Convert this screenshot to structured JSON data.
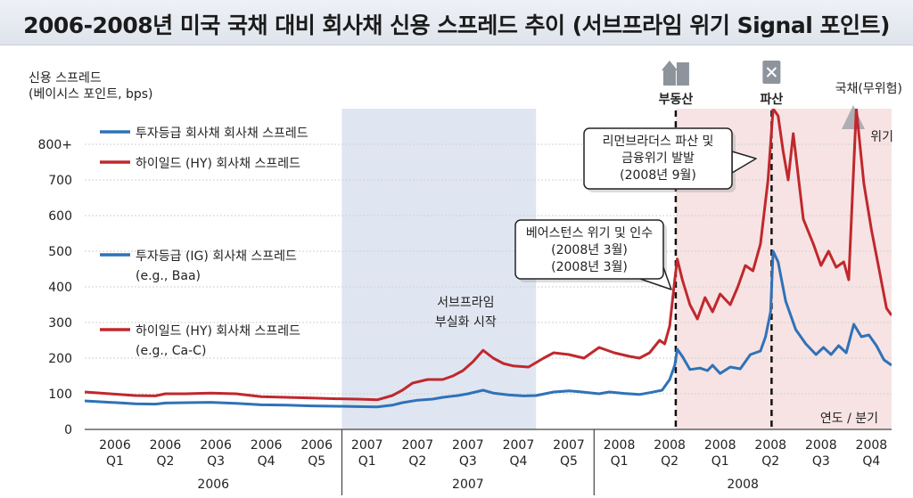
{
  "header": {
    "title": "2006-2008년 미국 국채 대비 회사채 신용 스프레드 추이 (서브프라임 위기 Signal 포인트)"
  },
  "chart_data": {
    "type": "line",
    "title": "2006-2008년 미국 국채 대비 회사채 신용 스프레드 추이 (서브프라임 위기 Signal 포인트)",
    "ylabel": [
      "신용 스프레드",
      "(베이시스 포인트, bps)"
    ],
    "xlabel": "연도 / 분기",
    "ylim": [
      0,
      900
    ],
    "yticks": [
      {
        "v": 0,
        "label": "0"
      },
      {
        "v": 100,
        "label": "100"
      },
      {
        "v": 200,
        "label": "200"
      },
      {
        "v": 300,
        "label": "300"
      },
      {
        "v": 400,
        "label": "400"
      },
      {
        "v": 500,
        "label": "500"
      },
      {
        "v": 600,
        "label": "600"
      },
      {
        "v": 700,
        "label": "700"
      },
      {
        "v": 800,
        "label": "800+"
      }
    ],
    "xlim": [
      0,
      16
    ],
    "xticks": [
      {
        "x": 0.6,
        "year": "2006",
        "q": "Q1"
      },
      {
        "x": 1.6,
        "year": "2006",
        "q": "Q2"
      },
      {
        "x": 2.6,
        "year": "2006",
        "q": "Q3"
      },
      {
        "x": 3.6,
        "year": "2006",
        "q": "Q4"
      },
      {
        "x": 4.6,
        "year": "2006",
        "q": "Q5"
      },
      {
        "x": 5.6,
        "year": "2007",
        "q": "Q1"
      },
      {
        "x": 6.6,
        "year": "2007",
        "q": "Q2"
      },
      {
        "x": 7.6,
        "year": "2007",
        "q": "Q3"
      },
      {
        "x": 8.6,
        "year": "2007",
        "q": "Q4"
      },
      {
        "x": 9.6,
        "year": "2007",
        "q": "Q5"
      },
      {
        "x": 10.6,
        "year": "2008",
        "q": "Q1"
      },
      {
        "x": 11.6,
        "year": "2008",
        "q": "Q2"
      },
      {
        "x": 12.6,
        "year": "2008",
        "q": "Q1"
      },
      {
        "x": 13.6,
        "year": "2008",
        "q": "Q2"
      },
      {
        "x": 14.6,
        "year": "2008",
        "q": "Q3"
      },
      {
        "x": 15.6,
        "year": "2008",
        "q": "Q4"
      }
    ],
    "year_groups": [
      {
        "label": "2006",
        "x0": 0,
        "x1": 5.1
      },
      {
        "label": "2007",
        "x0": 5.1,
        "x1": 10.1
      },
      {
        "label": "2008",
        "x0": 10.1,
        "x1": 16
      }
    ],
    "legend": [
      {
        "series": 0,
        "text": [
          "투자등급 회사채 회사채 스프레드"
        ]
      },
      {
        "series": 1,
        "text": [
          "하이일드 (HY) 회사채 스프레드"
        ]
      },
      {
        "series": 0,
        "text": [
          "투자등급 (IG) 회사채 스프레드",
          "(e.g., Baa)"
        ]
      },
      {
        "series": 1,
        "text": [
          "하이일드 (HY) 회사채 스프레드",
          "(e.g., Ca-C)"
        ]
      }
    ],
    "regions": [
      {
        "x0": 5.1,
        "x1": 8.95,
        "color": "#dfe6f1",
        "label": [
          "서브프라임",
          "부실화 시작"
        ]
      },
      {
        "x0": 11.72,
        "x1": 16,
        "color": "#f7e3e3",
        "label": []
      }
    ],
    "events": [
      {
        "x": 11.72,
        "label": "부동산",
        "icon": "building-icon"
      },
      {
        "x": 13.62,
        "label": "파산",
        "icon": "bankruptcy-document-icon"
      }
    ],
    "corner_labels": [
      {
        "text": "국채(무위험)",
        "color": "#222222"
      },
      {
        "text": "위기",
        "color": "#c0282d"
      }
    ],
    "callouts": [
      {
        "text": [
          "베어스턴스 위기 및 인수",
          "(2008년 3월)",
          "(2008년 3월)"
        ],
        "target": [
          11.7,
          480
        ]
      },
      {
        "text": [
          "리먼브라더스 파산 및",
          "금융위기 발발",
          "(2008년 9월)"
        ],
        "target": [
          13.55,
          800
        ]
      }
    ],
    "series": [
      {
        "name": "투자등급 (IG) 회사채 스프레드",
        "color": "#2f72b8",
        "points": [
          [
            0,
            80
          ],
          [
            0.5,
            76
          ],
          [
            1,
            72
          ],
          [
            1.4,
            71
          ],
          [
            1.6,
            74
          ],
          [
            2,
            75
          ],
          [
            2.5,
            76
          ],
          [
            3,
            73
          ],
          [
            3.5,
            69
          ],
          [
            4,
            68
          ],
          [
            4.5,
            66
          ],
          [
            5,
            65
          ],
          [
            5.4,
            64
          ],
          [
            5.8,
            63
          ],
          [
            6.1,
            68
          ],
          [
            6.3,
            75
          ],
          [
            6.6,
            82
          ],
          [
            6.9,
            85
          ],
          [
            7.1,
            90
          ],
          [
            7.4,
            95
          ],
          [
            7.6,
            100
          ],
          [
            7.9,
            110
          ],
          [
            8.1,
            102
          ],
          [
            8.4,
            97
          ],
          [
            8.7,
            94
          ],
          [
            8.95,
            95
          ],
          [
            9.3,
            105
          ],
          [
            9.6,
            108
          ],
          [
            9.8,
            106
          ],
          [
            10.2,
            100
          ],
          [
            10.4,
            105
          ],
          [
            10.7,
            101
          ],
          [
            11,
            98
          ],
          [
            11.2,
            103
          ],
          [
            11.45,
            110
          ],
          [
            11.6,
            140
          ],
          [
            11.7,
            180
          ],
          [
            11.75,
            225
          ],
          [
            11.85,
            205
          ],
          [
            12,
            168
          ],
          [
            12.2,
            172
          ],
          [
            12.35,
            165
          ],
          [
            12.45,
            180
          ],
          [
            12.6,
            157
          ],
          [
            12.8,
            175
          ],
          [
            13,
            170
          ],
          [
            13.2,
            210
          ],
          [
            13.4,
            220
          ],
          [
            13.5,
            260
          ],
          [
            13.6,
            330
          ],
          [
            13.65,
            500
          ],
          [
            13.75,
            470
          ],
          [
            13.9,
            360
          ],
          [
            14.1,
            280
          ],
          [
            14.3,
            240
          ],
          [
            14.5,
            210
          ],
          [
            14.65,
            230
          ],
          [
            14.8,
            210
          ],
          [
            14.95,
            235
          ],
          [
            15.1,
            215
          ],
          [
            15.25,
            295
          ],
          [
            15.4,
            260
          ],
          [
            15.55,
            265
          ],
          [
            15.7,
            235
          ],
          [
            15.85,
            195
          ],
          [
            16,
            180
          ]
        ]
      },
      {
        "name": "하이일드 (HY) 회사채 스프레드",
        "color": "#c0282d",
        "points": [
          [
            0,
            105
          ],
          [
            0.5,
            100
          ],
          [
            1,
            95
          ],
          [
            1.4,
            94
          ],
          [
            1.6,
            100
          ],
          [
            2,
            100
          ],
          [
            2.5,
            102
          ],
          [
            3,
            100
          ],
          [
            3.5,
            92
          ],
          [
            4,
            90
          ],
          [
            4.5,
            88
          ],
          [
            5,
            86
          ],
          [
            5.4,
            85
          ],
          [
            5.8,
            83
          ],
          [
            6.1,
            95
          ],
          [
            6.3,
            110
          ],
          [
            6.5,
            130
          ],
          [
            6.8,
            140
          ],
          [
            7.1,
            140
          ],
          [
            7.3,
            150
          ],
          [
            7.5,
            165
          ],
          [
            7.7,
            190
          ],
          [
            7.9,
            222
          ],
          [
            8.1,
            200
          ],
          [
            8.3,
            185
          ],
          [
            8.5,
            178
          ],
          [
            8.8,
            175
          ],
          [
            9.1,
            200
          ],
          [
            9.3,
            215
          ],
          [
            9.6,
            210
          ],
          [
            9.9,
            200
          ],
          [
            10.2,
            230
          ],
          [
            10.5,
            215
          ],
          [
            10.8,
            205
          ],
          [
            11.0,
            200
          ],
          [
            11.2,
            215
          ],
          [
            11.4,
            250
          ],
          [
            11.5,
            240
          ],
          [
            11.6,
            290
          ],
          [
            11.7,
            420
          ],
          [
            11.75,
            478
          ],
          [
            11.85,
            420
          ],
          [
            12.0,
            350
          ],
          [
            12.15,
            310
          ],
          [
            12.3,
            370
          ],
          [
            12.45,
            330
          ],
          [
            12.6,
            380
          ],
          [
            12.8,
            350
          ],
          [
            12.95,
            400
          ],
          [
            13.1,
            460
          ],
          [
            13.25,
            445
          ],
          [
            13.4,
            520
          ],
          [
            13.55,
            700
          ],
          [
            13.65,
            900
          ],
          [
            13.75,
            880
          ],
          [
            13.85,
            780
          ],
          [
            13.95,
            700
          ],
          [
            14.05,
            830
          ],
          [
            14.25,
            590
          ],
          [
            14.45,
            520
          ],
          [
            14.6,
            460
          ],
          [
            14.75,
            500
          ],
          [
            14.9,
            455
          ],
          [
            15.05,
            470
          ],
          [
            15.15,
            420
          ],
          [
            15.3,
            900
          ],
          [
            15.45,
            690
          ],
          [
            15.6,
            560
          ],
          [
            15.75,
            450
          ],
          [
            15.9,
            340
          ],
          [
            16.0,
            320
          ]
        ]
      }
    ]
  }
}
